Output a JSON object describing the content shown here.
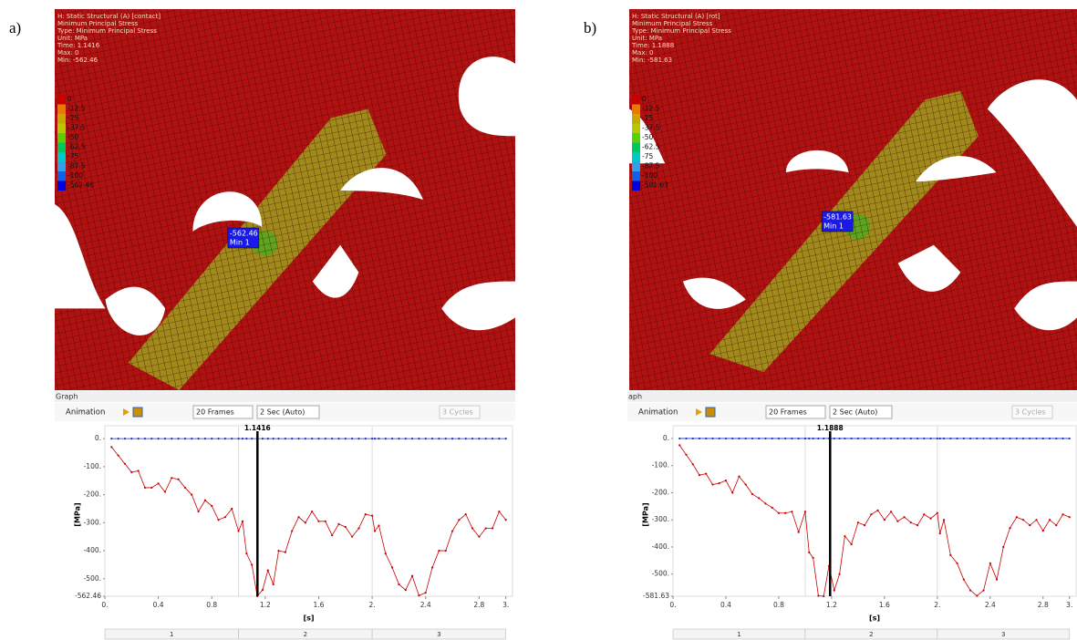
{
  "panels": [
    {
      "label": "a)",
      "header": [
        "H: Static Structural (A) [contact]",
        "Minimum Principal Stress",
        "Type: Minimum Principal Stress",
        "Unit: MPa",
        "Time: 1.1416",
        "Max: 0",
        "Min: -562.46"
      ],
      "legend": [
        "0",
        "-12.5",
        "-25",
        "-37.5",
        "-50",
        "-62.5",
        "-75",
        "-87.5",
        "-100",
        "-562.46"
      ],
      "probe": {
        "value": "-562.46",
        "name": "Min 1"
      },
      "graph_title": "Graph",
      "toolbar": {
        "animation": "Animation",
        "frames": "20 Frames",
        "duration": "2 Sec (Auto)",
        "cycles": "3 Cycles"
      },
      "timeline": [
        "1",
        "2",
        "3"
      ]
    },
    {
      "label": "b)",
      "header": [
        "H: Static Structural (A) [rot]",
        "Minimum Principal Stress",
        "Type: Minimum Principal Stress",
        "Unit: MPa",
        "Time: 1.1888",
        "Max: 0",
        "Min: -581.63"
      ],
      "legend": [
        "0",
        "-12.5",
        "-25",
        "-37.5",
        "-50",
        "-62.5",
        "-75",
        "-87.5",
        "-100",
        "-581.63"
      ],
      "probe": {
        "value": "-581.63",
        "name": "Min 1"
      },
      "graph_title": "aph",
      "toolbar": {
        "animation": "Animation",
        "frames": "20 Frames",
        "duration": "2 Sec (Auto)",
        "cycles": "3 Cycles"
      },
      "timeline": [
        "1",
        "2",
        "3"
      ]
    }
  ],
  "chart_data": [
    {
      "type": "line",
      "xlabel": "[s]",
      "ylabel": "[MPa]",
      "cursor": 1.1416,
      "x": [
        0.05,
        0.1,
        0.15,
        0.2,
        0.25,
        0.3,
        0.35,
        0.4,
        0.45,
        0.5,
        0.55,
        0.6,
        0.65,
        0.7,
        0.75,
        0.8,
        0.85,
        0.9,
        0.95,
        1.0,
        1.03,
        1.06,
        1.1,
        1.14,
        1.18,
        1.22,
        1.26,
        1.3,
        1.35,
        1.4,
        1.45,
        1.5,
        1.55,
        1.6,
        1.65,
        1.7,
        1.75,
        1.8,
        1.85,
        1.9,
        1.95,
        2.0,
        2.02,
        2.05,
        2.1,
        2.15,
        2.2,
        2.25,
        2.3,
        2.35,
        2.4,
        2.45,
        2.5,
        2.55,
        2.6,
        2.65,
        2.7,
        2.75,
        2.8,
        2.85,
        2.9,
        2.95,
        3.0
      ],
      "series": [
        {
          "color": "#1a2fc8",
          "values": [
            0,
            0,
            0,
            0,
            0,
            0,
            0,
            0,
            0,
            0,
            0,
            0,
            0,
            0,
            0,
            0,
            0,
            0,
            0,
            0,
            0,
            0,
            0,
            0,
            0,
            0,
            0,
            0,
            0,
            0,
            0,
            0,
            0,
            0,
            0,
            0,
            0,
            0,
            0,
            0,
            0,
            0,
            0,
            0,
            0,
            0,
            0,
            0,
            0,
            0,
            0,
            0,
            0,
            0,
            0,
            0,
            0,
            0,
            0,
            0,
            0,
            0,
            0
          ]
        },
        {
          "color": "#c80000",
          "values": [
            -30,
            -60,
            -90,
            -120,
            -115,
            -175,
            -175,
            -160,
            -190,
            -140,
            -145,
            -175,
            -200,
            -260,
            -220,
            -240,
            -290,
            -280,
            -250,
            -330,
            -295,
            -410,
            -450,
            -562,
            -540,
            -470,
            -520,
            -400,
            -405,
            -330,
            -280,
            -300,
            -260,
            -295,
            -295,
            -345,
            -305,
            -315,
            -350,
            -320,
            -270,
            -275,
            -330,
            -310,
            -410,
            -460,
            -520,
            -540,
            -490,
            -560,
            -550,
            -460,
            -400,
            -400,
            -330,
            -290,
            -270,
            -320,
            -350,
            -320,
            -320,
            -260,
            -290
          ]
        }
      ],
      "xlim": [
        0,
        3.05
      ],
      "ylim": [
        -562.46,
        20
      ],
      "xticks": [
        {
          "value": 0,
          "label": "0."
        },
        0.4,
        0.8,
        1.2,
        1.6,
        {
          "value": 2,
          "label": "2."
        },
        2.4,
        2.8,
        {
          "value": 3,
          "label": "3."
        }
      ],
      "yticks": [
        {
          "value": 0,
          "label": "0."
        },
        {
          "value": -100,
          "label": "-100."
        },
        {
          "value": -200,
          "label": "-200."
        },
        {
          "value": -300,
          "label": "-300."
        },
        {
          "value": -400,
          "label": "-400."
        },
        {
          "value": -500,
          "label": "-500."
        },
        -562.46
      ],
      "cycle_lines": [
        1,
        2
      ]
    },
    {
      "type": "line",
      "xlabel": "[s]",
      "ylabel": "[MPa]",
      "cursor": 1.1888,
      "x": [
        0.05,
        0.1,
        0.15,
        0.2,
        0.25,
        0.3,
        0.35,
        0.4,
        0.45,
        0.5,
        0.55,
        0.6,
        0.65,
        0.7,
        0.75,
        0.8,
        0.85,
        0.9,
        0.95,
        1.0,
        1.03,
        1.06,
        1.1,
        1.14,
        1.18,
        1.22,
        1.26,
        1.3,
        1.35,
        1.4,
        1.45,
        1.5,
        1.55,
        1.6,
        1.65,
        1.7,
        1.75,
        1.8,
        1.85,
        1.9,
        1.95,
        2.0,
        2.02,
        2.05,
        2.1,
        2.15,
        2.2,
        2.25,
        2.3,
        2.35,
        2.4,
        2.45,
        2.5,
        2.55,
        2.6,
        2.65,
        2.7,
        2.75,
        2.8,
        2.85,
        2.9,
        2.95,
        3.0
      ],
      "series": [
        {
          "color": "#1a2fc8",
          "values": [
            0,
            0,
            0,
            0,
            0,
            0,
            0,
            0,
            0,
            0,
            0,
            0,
            0,
            0,
            0,
            0,
            0,
            0,
            0,
            0,
            0,
            0,
            0,
            0,
            0,
            0,
            0,
            0,
            0,
            0,
            0,
            0,
            0,
            0,
            0,
            0,
            0,
            0,
            0,
            0,
            0,
            0,
            0,
            0,
            0,
            0,
            0,
            0,
            0,
            0,
            0,
            0,
            0,
            0,
            0,
            0,
            0,
            0,
            0,
            0,
            0,
            0,
            0
          ]
        },
        {
          "color": "#c80000",
          "values": [
            -25,
            -60,
            -95,
            -135,
            -130,
            -170,
            -165,
            -155,
            -200,
            -140,
            -170,
            -205,
            -220,
            -240,
            -255,
            -275,
            -275,
            -270,
            -345,
            -270,
            -420,
            -440,
            -580,
            -581.63,
            -470,
            -560,
            -500,
            -360,
            -390,
            -310,
            -320,
            -280,
            -265,
            -300,
            -270,
            -305,
            -290,
            -310,
            -320,
            -280,
            -295,
            -275,
            -350,
            -300,
            -430,
            -460,
            -520,
            -560,
            -580,
            -560,
            -460,
            -520,
            -400,
            -330,
            -290,
            -300,
            -320,
            -300,
            -340,
            -300,
            -320,
            -280,
            -290
          ]
        }
      ],
      "xlim": [
        0,
        3.05
      ],
      "ylim": [
        -581.63,
        20
      ],
      "xticks": [
        {
          "value": 0,
          "label": "0."
        },
        0.4,
        0.8,
        1.2,
        1.6,
        {
          "value": 2,
          "label": "2."
        },
        2.4,
        2.8,
        {
          "value": 3,
          "label": "3."
        }
      ],
      "yticks": [
        {
          "value": 0,
          "label": "0."
        },
        {
          "value": -100,
          "label": "-100."
        },
        {
          "value": -200,
          "label": "-200."
        },
        {
          "value": -300,
          "label": "-300."
        },
        {
          "value": -400,
          "label": "-400."
        },
        {
          "value": -500,
          "label": "-500."
        },
        -581.63
      ],
      "cycle_lines": [
        1,
        2
      ]
    }
  ]
}
